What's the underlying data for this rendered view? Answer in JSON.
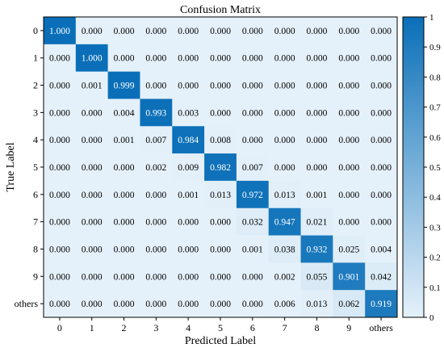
{
  "chart_data": {
    "type": "heatmap",
    "title": "Confusion Matrix",
    "xlabel": "Predicted Label",
    "ylabel": "True Label",
    "x_categories": [
      "0",
      "1",
      "2",
      "3",
      "4",
      "5",
      "6",
      "7",
      "8",
      "9",
      "others"
    ],
    "y_categories": [
      "0",
      "1",
      "2",
      "3",
      "4",
      "5",
      "6",
      "7",
      "8",
      "9",
      "others"
    ],
    "values": [
      [
        1.0,
        0.0,
        0.0,
        0.0,
        0.0,
        0.0,
        0.0,
        0.0,
        0.0,
        0.0,
        0.0
      ],
      [
        0.0,
        1.0,
        0.0,
        0.0,
        0.0,
        0.0,
        0.0,
        0.0,
        0.0,
        0.0,
        0.0
      ],
      [
        0.0,
        0.001,
        0.999,
        0.0,
        0.0,
        0.0,
        0.0,
        0.0,
        0.0,
        0.0,
        0.0
      ],
      [
        0.0,
        0.0,
        0.004,
        0.993,
        0.003,
        0.0,
        0.0,
        0.0,
        0.0,
        0.0,
        0.0
      ],
      [
        0.0,
        0.0,
        0.001,
        0.007,
        0.984,
        0.008,
        0.0,
        0.0,
        0.0,
        0.0,
        0.0
      ],
      [
        0.0,
        0.0,
        0.0,
        0.002,
        0.009,
        0.982,
        0.007,
        0.0,
        0.0,
        0.0,
        0.0
      ],
      [
        0.0,
        0.0,
        0.0,
        0.0,
        0.001,
        0.013,
        0.972,
        0.013,
        0.001,
        0.0,
        0.0
      ],
      [
        0.0,
        0.0,
        0.0,
        0.0,
        0.0,
        0.0,
        0.032,
        0.947,
        0.021,
        0.0,
        0.0
      ],
      [
        0.0,
        0.0,
        0.0,
        0.0,
        0.0,
        0.0,
        0.001,
        0.038,
        0.932,
        0.025,
        0.004
      ],
      [
        0.0,
        0.0,
        0.0,
        0.0,
        0.0,
        0.0,
        0.0,
        0.002,
        0.055,
        0.901,
        0.042
      ],
      [
        0.0,
        0.0,
        0.0,
        0.0,
        0.0,
        0.0,
        0.0,
        0.006,
        0.013,
        0.062,
        0.919
      ]
    ],
    "value_format": "3 decimals",
    "colormap": {
      "low": "#e5f1fa",
      "high": "#0a6fb8"
    },
    "colorbar": {
      "range": [
        0,
        1
      ],
      "ticks": [
        "0",
        "0.1",
        "0.2",
        "0.3",
        "0.4",
        "0.5",
        "0.6",
        "0.7",
        "0.8",
        "0.9",
        "1"
      ]
    }
  }
}
